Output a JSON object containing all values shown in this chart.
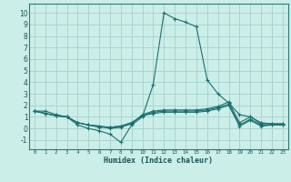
{
  "xlabel": "Humidex (Indice chaleur)",
  "bg_color": "#cceee8",
  "grid_color": "#aad4ce",
  "line_color": "#1a7070",
  "xlim": [
    -0.5,
    23.5
  ],
  "ylim": [
    -1.8,
    10.8
  ],
  "xticks": [
    0,
    1,
    2,
    3,
    4,
    5,
    6,
    7,
    8,
    9,
    10,
    11,
    12,
    13,
    14,
    15,
    16,
    17,
    18,
    19,
    20,
    21,
    22,
    23
  ],
  "yticks": [
    -1,
    0,
    1,
    2,
    3,
    4,
    5,
    6,
    7,
    8,
    9,
    10
  ],
  "lines": [
    [
      1.5,
      1.5,
      1.2,
      1.0,
      0.3,
      0.0,
      -0.2,
      -0.5,
      -1.2,
      0.3,
      1.0,
      3.8,
      10.0,
      9.5,
      9.2,
      8.8,
      4.2,
      3.0,
      2.2,
      1.2,
      1.0,
      0.5,
      0.4,
      0.4
    ],
    [
      1.5,
      1.3,
      1.1,
      1.0,
      0.5,
      0.3,
      0.2,
      0.0,
      0.1,
      0.4,
      1.2,
      1.5,
      1.6,
      1.6,
      1.6,
      1.6,
      1.7,
      1.9,
      2.3,
      0.5,
      1.0,
      0.4,
      0.4,
      0.4
    ],
    [
      1.5,
      1.3,
      1.1,
      1.0,
      0.5,
      0.3,
      0.2,
      0.1,
      0.2,
      0.5,
      1.1,
      1.4,
      1.5,
      1.5,
      1.5,
      1.5,
      1.6,
      1.8,
      2.1,
      0.3,
      0.8,
      0.3,
      0.3,
      0.3
    ],
    [
      1.5,
      1.3,
      1.1,
      1.0,
      0.5,
      0.3,
      0.1,
      0.1,
      0.2,
      0.5,
      1.1,
      1.3,
      1.4,
      1.4,
      1.4,
      1.4,
      1.5,
      1.7,
      2.0,
      0.2,
      0.7,
      0.2,
      0.3,
      0.3
    ]
  ]
}
